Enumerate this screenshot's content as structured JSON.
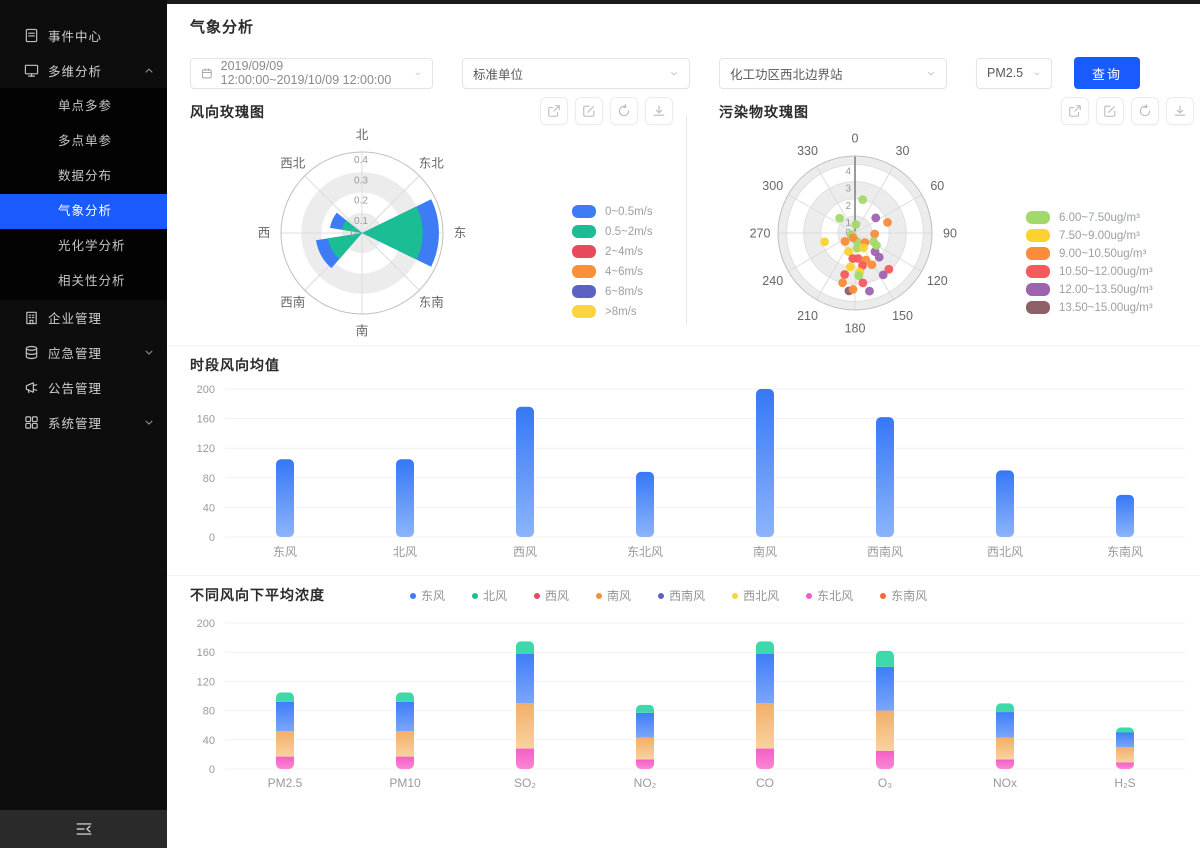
{
  "sidebar": {
    "items": [
      {
        "label": "事件中心",
        "icon": "document-icon"
      },
      {
        "label": "多维分析",
        "icon": "monitor-icon",
        "caret": "up",
        "children": [
          {
            "label": "单点多参",
            "active": false
          },
          {
            "label": "多点单参",
            "active": false
          },
          {
            "label": "数据分布",
            "active": false
          },
          {
            "label": "气象分析",
            "active": true
          },
          {
            "label": "光化学分析",
            "active": false
          },
          {
            "label": "相关性分析",
            "active": false
          }
        ]
      },
      {
        "label": "企业管理",
        "icon": "building-icon"
      },
      {
        "label": "应急管理",
        "icon": "database-icon",
        "caret": "down"
      },
      {
        "label": "公告管理",
        "icon": "megaphone-icon"
      },
      {
        "label": "系统管理",
        "icon": "grid-icon",
        "caret": "down"
      }
    ],
    "active_color": "#1a5bfe"
  },
  "header": {
    "title": "气象分析"
  },
  "filters": {
    "date_range": "2019/09/09 12:00:00~2019/10/09 12:00:00",
    "unit": "标准单位",
    "station": "化工功区西北边界站",
    "pollutant": "PM2.5",
    "query_label": "查询"
  },
  "toolbar_icons": [
    "open-in-new-icon",
    "edit-icon",
    "refresh-icon",
    "download-icon"
  ],
  "chart_data": [
    {
      "type": "wind-rose",
      "title": "风向玫瑰图",
      "directions": [
        "北",
        "东北",
        "东",
        "东南",
        "南",
        "西南",
        "西",
        "西北"
      ],
      "radial_ticks": [
        0,
        0.1,
        0.2,
        0.3,
        0.4
      ],
      "radial_max": 0.4,
      "legend": [
        {
          "label": "0~0.5m/s",
          "color": "#3d7cf5"
        },
        {
          "label": "0.5~2m/s",
          "color": "#1bbd95"
        },
        {
          "label": "2~4m/s",
          "color": "#e8495c"
        },
        {
          "label": "4~6m/s",
          "color": "#f9903c"
        },
        {
          "label": "6~8m/s",
          "color": "#5d61c4"
        },
        {
          "label": ">8m/s",
          "color": "#fbd43f"
        }
      ],
      "wedges": [
        {
          "direction": "东",
          "center_deg": 90,
          "width_deg": 52,
          "inner_series": "0.5~2m/s",
          "inner_value": 0.3,
          "outer_series": "0~0.5m/s",
          "outer_value": 0.38
        },
        {
          "direction": "西南",
          "center_deg": 241,
          "width_deg": 40,
          "inner_series": "0.5~2m/s",
          "inner_value": 0.17,
          "outer_series": "0~0.5m/s",
          "outer_value": 0.23
        },
        {
          "direction": "西北",
          "center_deg": 294,
          "width_deg": 30,
          "inner_series": "0.5~2m/s",
          "inner_value": 0.1,
          "outer_series": "0~0.5m/s",
          "outer_value": 0.16
        }
      ]
    },
    {
      "type": "polar-scatter",
      "title": "污染物玫瑰图",
      "angle_ticks": [
        0,
        30,
        60,
        90,
        120,
        150,
        180,
        210,
        240,
        270,
        300,
        330
      ],
      "radial_ticks": [
        0,
        1,
        2,
        3,
        4
      ],
      "radial_max": 4.5,
      "legend": [
        {
          "label": "6.00~7.50ug/m³",
          "color": "#a3d96a"
        },
        {
          "label": "7.50~9.00ug/m³",
          "color": "#fbd22f"
        },
        {
          "label": "9.00~10.50ug/m³",
          "color": "#fa8c3b"
        },
        {
          "label": "10.50~12.00ug/m³",
          "color": "#f55b5b"
        },
        {
          "label": "12.00~13.50ug/m³",
          "color": "#9d63ae"
        },
        {
          "label": "13.50~15.00ug/m³",
          "color": "#8e5f66"
        }
      ],
      "points": [
        {
          "deg": 13,
          "r": 2.0,
          "bin": 0
        },
        {
          "deg": 314,
          "r": 1.25,
          "bin": 0
        },
        {
          "deg": 6,
          "r": 0.5,
          "bin": 0
        },
        {
          "deg": 54,
          "r": 1.5,
          "bin": 4
        },
        {
          "deg": 72,
          "r": 2.0,
          "bin": 2
        },
        {
          "deg": 93,
          "r": 1.15,
          "bin": 2
        },
        {
          "deg": 254,
          "r": 1.85,
          "bin": 1
        },
        {
          "deg": 230,
          "r": 0.76,
          "bin": 2
        },
        {
          "deg": 167,
          "r": 0.5,
          "bin": 0
        },
        {
          "deg": 134,
          "r": 0.8,
          "bin": 2
        },
        {
          "deg": 115,
          "r": 1.2,
          "bin": 0
        },
        {
          "deg": 199,
          "r": 1.15,
          "bin": 1
        },
        {
          "deg": 172,
          "r": 0.9,
          "bin": 0
        },
        {
          "deg": 133,
          "r": 1.6,
          "bin": 4
        },
        {
          "deg": 185,
          "r": 1.5,
          "bin": 3
        },
        {
          "deg": 173,
          "r": 1.5,
          "bin": 3
        },
        {
          "deg": 158,
          "r": 1.7,
          "bin": 2
        },
        {
          "deg": 135,
          "r": 2.0,
          "bin": 4
        },
        {
          "deg": 188,
          "r": 2.0,
          "bin": 1
        },
        {
          "deg": 167,
          "r": 1.95,
          "bin": 3
        },
        {
          "deg": 173,
          "r": 2.3,
          "bin": 1
        },
        {
          "deg": 152,
          "r": 2.1,
          "bin": 2
        },
        {
          "deg": 137,
          "r": 2.9,
          "bin": 3
        },
        {
          "deg": 146,
          "r": 2.95,
          "bin": 4
        },
        {
          "deg": 194,
          "r": 2.5,
          "bin": 3
        },
        {
          "deg": 175,
          "r": 2.5,
          "bin": 0
        },
        {
          "deg": 171,
          "r": 2.95,
          "bin": 3
        },
        {
          "deg": 194,
          "r": 3.0,
          "bin": 2
        },
        {
          "deg": 186,
          "r": 3.4,
          "bin": 5
        },
        {
          "deg": 182,
          "r": 3.3,
          "bin": 2
        },
        {
          "deg": 166,
          "r": 3.5,
          "bin": 4
        },
        {
          "deg": 247,
          "r": 0.25,
          "bin": 0
        },
        {
          "deg": 202,
          "r": 0.3,
          "bin": 2
        },
        {
          "deg": 150,
          "r": 1.0,
          "bin": 1
        },
        {
          "deg": 120,
          "r": 1.45,
          "bin": 0
        }
      ]
    },
    {
      "type": "bar",
      "title": "时段风向均值",
      "categories": [
        "东风",
        "北风",
        "西风",
        "东北风",
        "南风",
        "西南风",
        "西北风",
        "东南风"
      ],
      "values": [
        105,
        105,
        176,
        88,
        200,
        162,
        90,
        57
      ],
      "ylim": [
        0,
        200
      ],
      "yticks": [
        0,
        40,
        80,
        120,
        160,
        200
      ],
      "bar_color_top": "#3578f6",
      "bar_color_bottom": "#8cb4fb"
    },
    {
      "type": "stacked-bar",
      "title": "不同风向下平均浓度",
      "categories": [
        "PM2.5",
        "PM10",
        "SO₂",
        "NO₂",
        "CO",
        "O₃",
        "NOx",
        "H₂S"
      ],
      "legend": [
        {
          "label": "东风",
          "color": "#3d7cf5"
        },
        {
          "label": "北风",
          "color": "#1bbd95"
        },
        {
          "label": "西风",
          "color": "#e8495c"
        },
        {
          "label": "南风",
          "color": "#f9903c"
        },
        {
          "label": "西南风",
          "color": "#5d61c4"
        },
        {
          "label": "西北风",
          "color": "#fbd43f"
        },
        {
          "label": "东北风",
          "color": "#ee5bcb"
        },
        {
          "label": "东南风",
          "color": "#f96a2d"
        }
      ],
      "series": [
        {
          "name": "东北风",
          "color_top": "#f45fc4",
          "color_bottom": "#fa86d4",
          "values": [
            17,
            17,
            28,
            13,
            28,
            25,
            13,
            9
          ]
        },
        {
          "name": "南风",
          "color_top": "#f3ae68",
          "color_bottom": "#f8d3a0",
          "values": [
            35,
            35,
            62,
            30,
            62,
            55,
            30,
            21
          ]
        },
        {
          "name": "东风",
          "color_top": "#3e7ef8",
          "color_bottom": "#7ba6fa",
          "values": [
            40,
            40,
            68,
            34,
            68,
            60,
            35,
            20
          ]
        },
        {
          "name": "北风",
          "color_top": "#3ed9ab",
          "color_bottom": "#3ed9ab",
          "values": [
            13,
            13,
            17,
            11,
            17,
            22,
            12,
            7
          ]
        }
      ],
      "ylim": [
        0,
        200
      ],
      "yticks": [
        0,
        40,
        80,
        120,
        160,
        200
      ]
    }
  ]
}
